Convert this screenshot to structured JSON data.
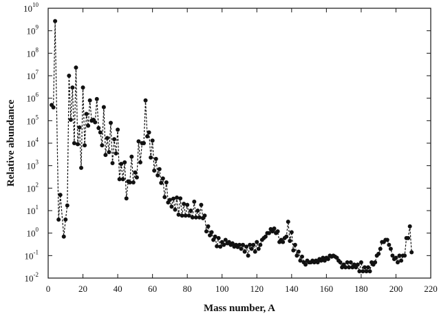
{
  "chart_data": {
    "type": "scatter_line",
    "xlabel": "Mass number, A",
    "ylabel": "Relative abundance",
    "log_y": true,
    "color": "#111111",
    "line_style": "dashed",
    "xlim": [
      0,
      220
    ],
    "xticks": [
      0,
      20,
      40,
      60,
      80,
      100,
      120,
      140,
      160,
      180,
      200,
      220
    ],
    "ylim": [
      0.01,
      10000000000
    ],
    "yticks": [
      {
        "value": 0.01,
        "label": "10",
        "exponent": "-2"
      },
      {
        "value": 0.1,
        "label": "10",
        "exponent": "-1"
      },
      {
        "value": 1,
        "label": "10",
        "exponent": "0"
      },
      {
        "value": 10,
        "label": "10",
        "exponent": "1"
      },
      {
        "value": 100,
        "label": "10",
        "exponent": "2"
      },
      {
        "value": 1000,
        "label": "10",
        "exponent": "3"
      },
      {
        "value": 10000,
        "label": "10",
        "exponent": "4"
      },
      {
        "value": 100000,
        "label": "10",
        "exponent": "5"
      },
      {
        "value": 1000000,
        "label": "10",
        "exponent": "6"
      },
      {
        "value": 10000000,
        "label": "10",
        "exponent": "7"
      },
      {
        "value": 100000000,
        "label": "10",
        "exponent": "8"
      },
      {
        "value": 1000000000,
        "label": "10",
        "exponent": "9"
      },
      {
        "value": 10000000000,
        "label": "10",
        "exponent": "10"
      }
    ],
    "x": [
      2,
      3,
      4,
      6,
      7,
      9,
      10,
      11,
      12,
      13,
      14,
      15,
      16,
      17,
      18,
      19,
      20,
      21,
      22,
      23,
      24,
      25,
      26,
      27,
      28,
      29,
      30,
      31,
      32,
      33,
      34,
      35,
      36,
      37,
      38,
      39,
      40,
      41,
      42,
      43,
      44,
      45,
      46,
      47,
      48,
      49,
      50,
      51,
      52,
      53,
      54,
      55,
      56,
      57,
      58,
      59,
      60,
      61,
      62,
      63,
      64,
      65,
      66,
      67,
      68,
      69,
      70,
      71,
      72,
      73,
      74,
      75,
      76,
      77,
      78,
      79,
      80,
      81,
      82,
      83,
      84,
      85,
      86,
      87,
      88,
      89,
      90,
      91,
      92,
      93,
      94,
      95,
      96,
      97,
      98,
      99,
      100,
      101,
      102,
      103,
      104,
      105,
      106,
      107,
      108,
      109,
      110,
      111,
      112,
      113,
      114,
      115,
      116,
      117,
      118,
      119,
      120,
      121,
      122,
      123,
      124,
      125,
      126,
      127,
      128,
      129,
      130,
      131,
      132,
      133,
      134,
      135,
      136,
      137,
      138,
      139,
      140,
      141,
      142,
      143,
      144,
      145,
      146,
      147,
      148,
      149,
      150,
      151,
      152,
      153,
      154,
      155,
      156,
      157,
      158,
      159,
      160,
      161,
      162,
      163,
      164,
      165,
      166,
      167,
      168,
      169,
      170,
      171,
      172,
      173,
      174,
      175,
      176,
      177,
      178,
      179,
      180,
      181,
      182,
      183,
      184,
      185,
      186,
      187,
      188,
      189,
      190,
      191,
      192,
      193,
      194,
      195,
      196,
      197,
      198,
      199,
      200,
      201,
      202,
      203,
      204,
      205,
      206,
      207,
      208,
      209
    ],
    "values": [
      500000,
      390000,
      2700000000,
      4,
      50,
      0.7,
      4,
      17,
      10000000,
      110000,
      3000000,
      10000,
      23000000,
      9000,
      50000,
      800,
      3000000,
      8000,
      200000,
      60000,
      800000,
      100000,
      110000,
      85000,
      920000,
      47000,
      30000,
      8000,
      400000,
      3000,
      17000,
      4000,
      80000,
      1300,
      15000,
      3500,
      40000,
      250,
      1200,
      250,
      1400,
      35,
      200,
      180,
      2500,
      180,
      500,
      300,
      12000,
      1400,
      10000,
      10000,
      800000,
      20000,
      30000,
      2300,
      13000,
      600,
      2000,
      370,
      700,
      170,
      270,
      40,
      180,
      23,
      30,
      15,
      34,
      11,
      38,
      6.6,
      35,
      6,
      20,
      6,
      18,
      6,
      10,
      5,
      25,
      5,
      10,
      5,
      18,
      4.6,
      6,
      1.2,
      2,
      0.8,
      1.1,
      0.5,
      0.7,
      0.26,
      0.6,
      0.25,
      0.4,
      0.3,
      0.5,
      0.35,
      0.4,
      0.3,
      0.35,
      0.25,
      0.3,
      0.24,
      0.3,
      0.2,
      0.3,
      0.15,
      0.25,
      0.1,
      0.3,
      0.2,
      0.3,
      0.15,
      0.4,
      0.2,
      0.3,
      0.5,
      0.6,
      0.7,
      1,
      1,
      1.5,
      1.2,
      1.6,
      1,
      1.2,
      0.4,
      0.5,
      0.4,
      0.6,
      0.7,
      3.2,
      0.45,
      1.1,
      0.17,
      0.3,
      0.1,
      0.15,
      0.06,
      0.09,
      0.05,
      0.04,
      0.06,
      0.05,
      0.05,
      0.06,
      0.05,
      0.06,
      0.05,
      0.07,
      0.06,
      0.08,
      0.06,
      0.08,
      0.07,
      0.1,
      0.09,
      0.1,
      0.09,
      0.08,
      0.06,
      0.05,
      0.03,
      0.04,
      0.03,
      0.05,
      0.03,
      0.05,
      0.03,
      0.04,
      0.03,
      0.04,
      0.02,
      0.05,
      0.02,
      0.03,
      0.02,
      0.03,
      0.02,
      0.05,
      0.04,
      0.05,
      0.1,
      0.12,
      0.2,
      0.4,
      0.4,
      0.5,
      0.5,
      0.3,
      0.2,
      0.1,
      0.07,
      0.08,
      0.05,
      0.1,
      0.06,
      0.1,
      0.1,
      0.6,
      0.6,
      2,
      0.14
    ]
  }
}
